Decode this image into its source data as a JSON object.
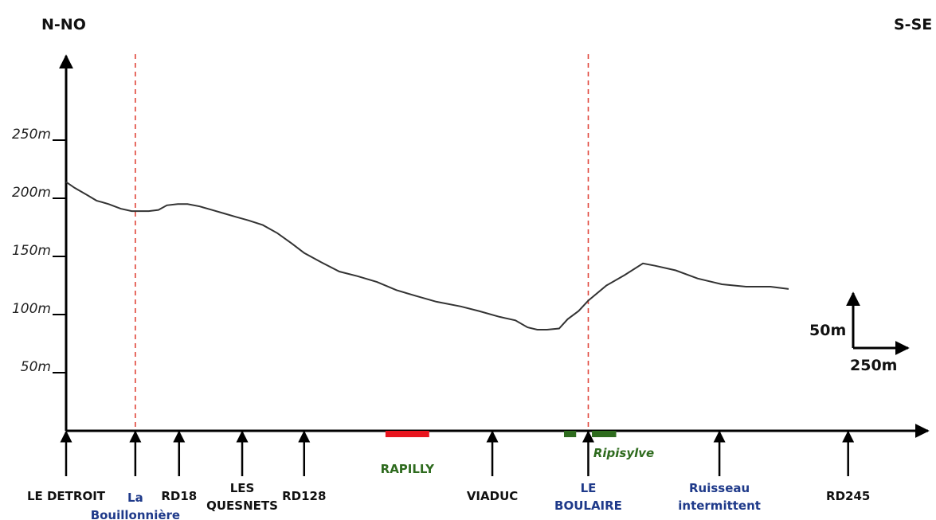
{
  "chart_data": {
    "type": "line",
    "title": "",
    "xlabel": "",
    "ylabel": "",
    "directions": {
      "left": "N-NO",
      "right": "S-SE"
    },
    "y_ticks": [
      {
        "value": 50,
        "label": "50m"
      },
      {
        "value": 100,
        "label": "100m"
      },
      {
        "value": 150,
        "label": "150m"
      },
      {
        "value": 200,
        "label": "200m"
      },
      {
        "value": 250,
        "label": "250m"
      }
    ],
    "ylim": [
      0,
      330
    ],
    "xlim": [
      0,
      7070
    ],
    "scale_bar": {
      "vertical": "50m",
      "horizontal": "250m"
    },
    "profile": {
      "x": [
        0,
        70,
        170,
        250,
        350,
        450,
        540,
        610,
        680,
        760,
        830,
        920,
        1000,
        1100,
        1200,
        1300,
        1400,
        1500,
        1620,
        1740,
        1860,
        1960,
        2100,
        2250,
        2400,
        2560,
        2720,
        2880,
        3050,
        3250,
        3400,
        3570,
        3700,
        3800,
        3880,
        3960,
        4060,
        4130,
        4220,
        4300,
        4450,
        4600,
        4750,
        4850,
        5020,
        5200,
        5400,
        5600,
        5800,
        5950
      ],
      "y": [
        214,
        209,
        203,
        198,
        195,
        191,
        189,
        189,
        189,
        190,
        194,
        195,
        195,
        193,
        190,
        187,
        184,
        181,
        177,
        170,
        161,
        153,
        145,
        137,
        133,
        128,
        121,
        116,
        111,
        107,
        103,
        98,
        95,
        89,
        87,
        87,
        88,
        96,
        103,
        112,
        125,
        134,
        144,
        142,
        138,
        131,
        126,
        124,
        124,
        122
      ]
    },
    "markers": [
      {
        "id": "le-detroit",
        "x": 0,
        "lines": [
          {
            "text": "LE DETROIT",
            "color": "#111111"
          }
        ]
      },
      {
        "id": "la-bouillonniere",
        "x": 570,
        "dashed": true,
        "lines": [
          {
            "text": "La",
            "color": "#1f3a8a"
          },
          {
            "text": "Bouillonnière",
            "color": "#1f3a8a"
          }
        ]
      },
      {
        "id": "rd18",
        "x": 930,
        "lines": [
          {
            "text": "RD18",
            "color": "#111111"
          }
        ]
      },
      {
        "id": "les-quesnets",
        "x": 1450,
        "lines": [
          {
            "text": "LES",
            "color": "#111111"
          },
          {
            "text": "QUESNETS",
            "color": "#111111"
          }
        ]
      },
      {
        "id": "rd128",
        "x": 1960,
        "lines": [
          {
            "text": "RD128",
            "color": "#111111"
          }
        ]
      },
      {
        "id": "viaduc",
        "x": 3510,
        "lines": [
          {
            "text": "VIADUC",
            "color": "#111111"
          }
        ]
      },
      {
        "id": "le-boulaire",
        "x": 4300,
        "dashed": true,
        "lines": [
          {
            "text": "LE",
            "color": "#1f3a8a"
          },
          {
            "text": "BOULAIRE",
            "color": "#1f3a8a"
          }
        ]
      },
      {
        "id": "ruisseau-intermittent",
        "x": 5380,
        "lines": [
          {
            "text": "Ruisseau",
            "color": "#1f3a8a"
          },
          {
            "text": "intermittent",
            "color": "#1f3a8a"
          }
        ]
      },
      {
        "id": "rd245",
        "x": 6440,
        "lines": [
          {
            "text": "RD245",
            "color": "#111111"
          }
        ]
      }
    ],
    "ranges": [
      {
        "id": "rapilly",
        "label": "RAPILLY",
        "x0": 2630,
        "x1": 2990,
        "color": "#e8141e"
      },
      {
        "id": "ripisylve-a",
        "x0": 4100,
        "x1": 4200,
        "color": "#2e6b1e"
      },
      {
        "id": "ripisylve-b",
        "label": "Ripisylve",
        "x0": 4330,
        "x1": 4530,
        "color": "#2e6b1e"
      }
    ]
  }
}
